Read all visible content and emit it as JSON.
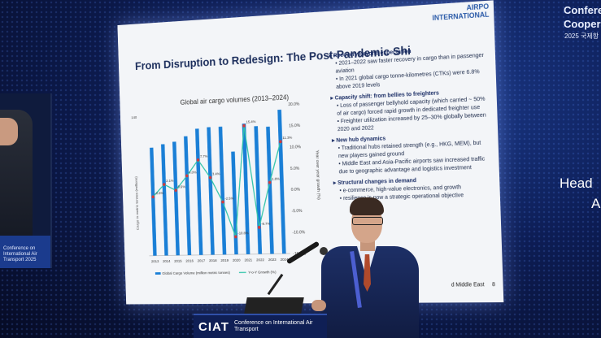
{
  "slide": {
    "title": "From Disruption to Redesign: The Post-Pandemic Shi",
    "brand_line1": "AIRPO",
    "brand_line2": "INTERNATIONAL",
    "page_number": "8",
    "footer_fragment": "d Middle East"
  },
  "chart_data": {
    "type": "bar",
    "title": "Global air cargo volumes (2013–2024)",
    "categories": [
      "2013",
      "2014",
      "2015",
      "2016",
      "2017",
      "2018",
      "2019",
      "2020",
      "2021",
      "2022",
      "2023",
      "2024"
    ],
    "series": [
      {
        "name": "Global Cargo Volume (million metric tonnes)",
        "values": [
          108,
          111,
          113,
          118,
          125,
          126,
          126,
          101,
          128,
          125,
          124,
          140
        ]
      },
      {
        "name": "Y-o-Y Growth (%)",
        "values": [
          -0.8,
          2.1,
          0.6,
          4.0,
          7.7,
          3.4,
          -2.5,
          -10.8,
          15.4,
          -8.7,
          1.8,
          11.3
        ]
      }
    ],
    "ylabel": "Cargo in metric tonnes (millions)",
    "y2label": "Year over year growth (%)",
    "y_ticks": [
      "140"
    ],
    "y2_ticks": [
      "20.0%",
      "15.0%",
      "10.0%",
      "5.0%",
      "0.0%",
      "-5.0%",
      "-10.0%",
      "-15.0%"
    ],
    "data_labels": [
      "-0.8%",
      "2.1%",
      "0.6%",
      "4.0%",
      "7.7%",
      "3.4%",
      "-2.5%",
      "-10.8%",
      "15.4%",
      "-8.7%",
      "1.8%",
      "11.3%"
    ],
    "colors": {
      "bars": "#1a7fd6",
      "line": "#2ec4a8",
      "markers": "#d23a3a"
    }
  },
  "notes": [
    {
      "heading": "Recovery beyond expectation",
      "bullets": [
        "2021–2022 saw faster recovery in cargo than in passenger aviation",
        "In 2021 global cargo tonne-kilometres (CTKs) were 6.8% above 2019 levels"
      ]
    },
    {
      "heading": "Capacity shift: from bellies to freighters",
      "bullets": [
        "Loss of passenger bellyhold capacity (which carried ~ 50% of air cargo) forced rapid growth in dedicated freighter use",
        "Freighter utilization increased by 25–30% globally between 2020 and 2022"
      ]
    },
    {
      "heading": "New hub dynamics",
      "bullets": [
        "Traditional hubs retained strength (e.g., HKG, MEM), but new players gained ground",
        "Middle East and Asia-Pacific airports saw increased traffic due to geographic advantage and logistics investment"
      ]
    },
    {
      "heading": "Structural changes in demand",
      "bullets": [
        "e-commerce, high-value electronics, and growth",
        "resilience is now a strategic operational objective"
      ]
    }
  ],
  "wall": {
    "title_line1": "Conferen",
    "title_line2": "Coopera",
    "subtitle": "2025 국제항",
    "head": "Head",
    "a": "A"
  },
  "side_screen": {
    "text": "Conference on International Air Transport 2025"
  },
  "podium": {
    "logo": "CIAT",
    "text": "Conference on International Air Transport"
  }
}
